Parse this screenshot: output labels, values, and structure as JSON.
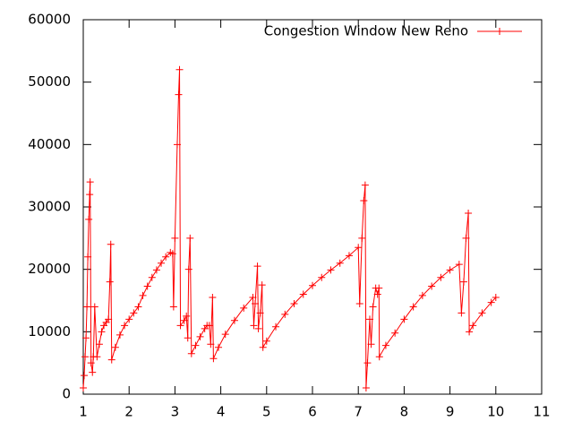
{
  "chart_data": {
    "type": "line",
    "marker": "plus",
    "x": [
      1.0,
      1.02,
      1.04,
      1.06,
      1.08,
      1.1,
      1.12,
      1.14,
      1.15,
      1.17,
      1.2,
      1.22,
      1.25,
      1.3,
      1.35,
      1.4,
      1.45,
      1.5,
      1.55,
      1.58,
      1.6,
      1.62,
      1.7,
      1.8,
      1.9,
      2.0,
      2.1,
      2.2,
      2.3,
      2.4,
      2.5,
      2.6,
      2.7,
      2.8,
      2.9,
      2.95,
      2.97,
      3.0,
      3.05,
      3.08,
      3.1,
      3.12,
      3.2,
      3.25,
      3.28,
      3.3,
      3.33,
      3.36,
      3.45,
      3.55,
      3.65,
      3.7,
      3.75,
      3.78,
      3.82,
      3.84,
      3.95,
      4.1,
      4.3,
      4.5,
      4.7,
      4.72,
      4.75,
      4.8,
      4.82,
      4.86,
      4.9,
      4.92,
      5.0,
      5.2,
      5.4,
      5.6,
      5.8,
      6.0,
      6.2,
      6.4,
      6.6,
      6.8,
      7.0,
      7.03,
      7.08,
      7.12,
      7.15,
      7.17,
      7.2,
      7.25,
      7.28,
      7.32,
      7.38,
      7.42,
      7.45,
      7.46,
      7.6,
      7.8,
      8.0,
      8.2,
      8.4,
      8.6,
      8.8,
      9.0,
      9.2,
      9.25,
      9.3,
      9.35,
      9.4,
      9.42,
      9.5,
      9.7,
      9.9,
      10.0
    ],
    "series": [
      {
        "name": "Congestion Window New Reno",
        "color": "#ff0000",
        "values": [
          1000,
          3000,
          6000,
          9000,
          14000,
          22000,
          28000,
          32000,
          34000,
          5000,
          3500,
          6000,
          14000,
          6000,
          8000,
          10000,
          11000,
          11500,
          12000,
          18000,
          24000,
          5500,
          7500,
          9500,
          11000,
          12000,
          13000,
          14000,
          15800,
          17300,
          18700,
          19900,
          21000,
          22000,
          22700,
          22500,
          14000,
          25000,
          40000,
          48000,
          52000,
          11000,
          11800,
          12500,
          9000,
          20000,
          25000,
          6500,
          7800,
          9200,
          10500,
          11000,
          11000,
          8000,
          15500,
          5700,
          7500,
          9600,
          11800,
          13800,
          15500,
          11000,
          14500,
          20500,
          10500,
          13000,
          17500,
          7500,
          8500,
          10800,
          12800,
          14500,
          16000,
          17400,
          18700,
          19900,
          21000,
          22200,
          23500,
          14500,
          25000,
          31000,
          33500,
          1000,
          5000,
          12000,
          8000,
          14000,
          17000,
          16000,
          17000,
          6000,
          7800,
          9800,
          12000,
          14000,
          15800,
          17300,
          18700,
          19900,
          20800,
          13000,
          18000,
          25000,
          29000,
          10000,
          11000,
          13000,
          14700,
          15500
        ]
      }
    ],
    "xlim": [
      1,
      11
    ],
    "xticks": [
      1,
      2,
      3,
      4,
      5,
      6,
      7,
      8,
      9,
      10,
      11
    ],
    "ylim": [
      0,
      60000
    ],
    "yticks": [
      0,
      10000,
      20000,
      30000,
      40000,
      50000,
      60000
    ],
    "legend": "top-right"
  }
}
